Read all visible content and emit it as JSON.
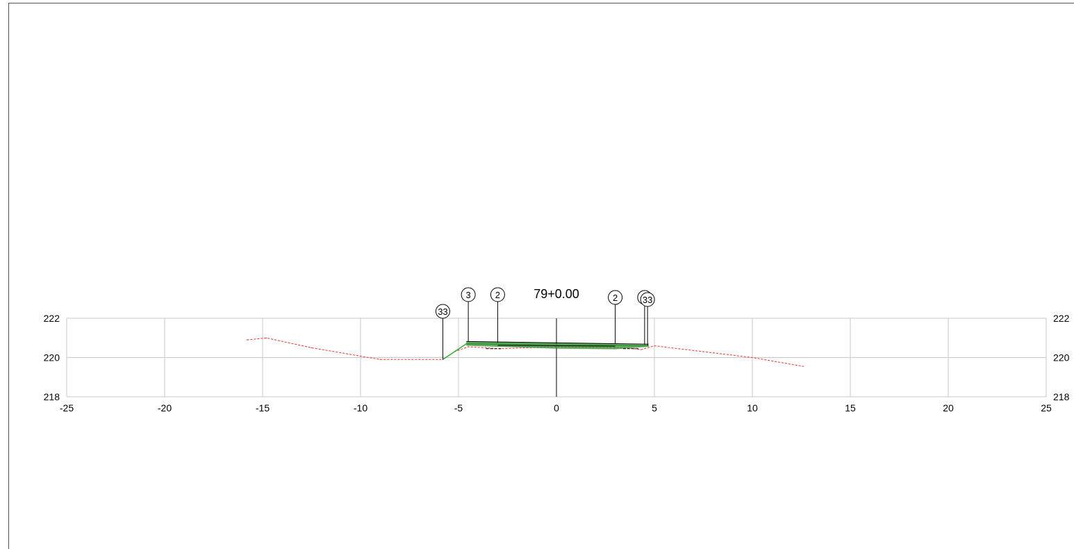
{
  "station_label": "79+0.00",
  "colors": {
    "ground": "#ff2a2a",
    "design": "#1aa81a",
    "design_fill": "#2f8f2f",
    "grid": "#c8c8c8",
    "text": "#000000",
    "subgrade": "#cc3333"
  },
  "chart_data": {
    "type": "line",
    "title": "",
    "xlabel": "",
    "ylabel": "",
    "xlim": [
      -25,
      25
    ],
    "ylim": [
      218,
      222
    ],
    "x_ticks": [
      -25,
      -20,
      -15,
      -10,
      -5,
      0,
      5,
      10,
      15,
      20,
      25
    ],
    "y_ticks": [
      218,
      220,
      222
    ],
    "x_tick_labels": [
      "-25",
      "-20",
      "-15",
      "-10",
      "-5",
      "0",
      "5",
      "10",
      "15",
      "20",
      "25"
    ],
    "y_tick_labels": [
      "218",
      "220",
      "222"
    ],
    "grid": true,
    "centerline_x": 0,
    "series": [
      {
        "style": "dashed",
        "x": [
          -15.8,
          -14.8,
          -12.5,
          -9.0,
          -5.8,
          -5.2,
          -4.5,
          -3.6,
          -2.9,
          0,
          3.0,
          4.0,
          4.3,
          5.0,
          10.0,
          12.6
        ],
        "y": [
          220.9,
          221.0,
          220.5,
          219.9,
          219.9,
          220.3,
          220.55,
          220.5,
          220.45,
          220.55,
          220.5,
          220.45,
          220.4,
          220.6,
          220.0,
          219.55
        ]
      },
      {
        "style": "solid",
        "x": [
          -5.8,
          -4.6,
          0,
          4.7
        ],
        "y": [
          219.9,
          220.7,
          220.65,
          220.6
        ]
      }
    ],
    "markers": [
      {
        "label": "33",
        "x": -5.8
      },
      {
        "label": "3",
        "x": -4.5
      },
      {
        "label": "2",
        "x": -3.0
      },
      {
        "label": "2",
        "x": 3.0
      },
      {
        "label": "3",
        "x": 4.5
      },
      {
        "label": "33",
        "x": 4.65
      }
    ]
  }
}
